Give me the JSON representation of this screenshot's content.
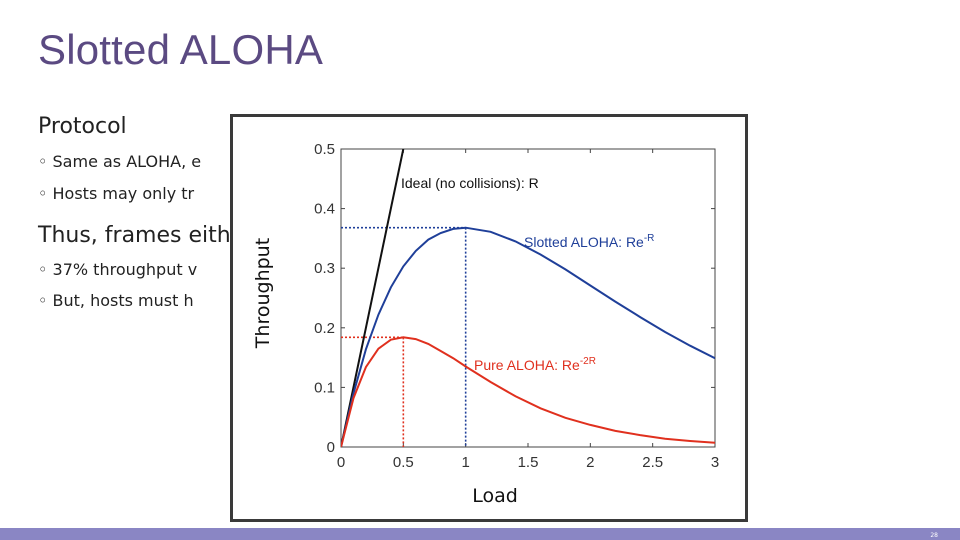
{
  "slide": {
    "title": "Slotted ALOHA",
    "section_protocol": "Protocol",
    "bullets_protocol": [
      "◦ Same as ALOHA, e",
      "◦ Hosts may only tr"
    ],
    "section_thus": "Thus, frames eith",
    "bullets_thus": [
      "◦ 37% throughput v",
      "◦ But, hosts must h"
    ],
    "page_number": "28"
  },
  "colors": {
    "title": "#5b4a82",
    "ideal": "#111111",
    "slotted": "#1f3f99",
    "pure": "#e0301e",
    "footer": "#8a86c4"
  },
  "chart_data": {
    "type": "line",
    "xlabel": "Load",
    "ylabel": "Throughput",
    "xlim": [
      0,
      3
    ],
    "ylim": [
      0,
      0.5
    ],
    "xticks": [
      "0",
      "0.5",
      "1",
      "1.5",
      "2",
      "2.5",
      "3"
    ],
    "yticks": [
      "0",
      "0.1",
      "0.2",
      "0.3",
      "0.4",
      "0.5"
    ],
    "grid": false,
    "series": [
      {
        "name": "Ideal (no collisions): R",
        "color": "#111111",
        "formula": "R",
        "x": [
          0,
          0.5
        ],
        "y": [
          0,
          0.5
        ]
      },
      {
        "name": "Slotted ALOHA: Re",
        "superscript": "-R",
        "color": "#1f3f99",
        "formula": "R*exp(-R)",
        "x": [
          0,
          0.1,
          0.2,
          0.3,
          0.4,
          0.5,
          0.6,
          0.7,
          0.8,
          0.9,
          1.0,
          1.2,
          1.4,
          1.6,
          1.8,
          2.0,
          2.2,
          2.4,
          2.6,
          2.8,
          3.0
        ],
        "y": [
          0,
          0.09,
          0.164,
          0.222,
          0.268,
          0.303,
          0.329,
          0.348,
          0.359,
          0.366,
          0.368,
          0.361,
          0.345,
          0.323,
          0.298,
          0.271,
          0.244,
          0.218,
          0.193,
          0.17,
          0.149
        ]
      },
      {
        "name": "Pure ALOHA: Re",
        "superscript": "-2R",
        "color": "#e0301e",
        "formula": "R*exp(-2R)",
        "x": [
          0,
          0.1,
          0.2,
          0.3,
          0.4,
          0.5,
          0.6,
          0.7,
          0.8,
          0.9,
          1.0,
          1.2,
          1.4,
          1.6,
          1.8,
          2.0,
          2.2,
          2.4,
          2.6,
          2.8,
          3.0
        ],
        "y": [
          0,
          0.082,
          0.134,
          0.165,
          0.18,
          0.184,
          0.181,
          0.173,
          0.161,
          0.149,
          0.135,
          0.109,
          0.085,
          0.065,
          0.049,
          0.037,
          0.027,
          0.02,
          0.014,
          0.01,
          0.007
        ]
      }
    ],
    "markers": [
      {
        "x": 1.0,
        "y": 0.368,
        "color": "#1f3f99"
      },
      {
        "x": 0.5,
        "y": 0.184,
        "color": "#e0301e"
      }
    ]
  }
}
